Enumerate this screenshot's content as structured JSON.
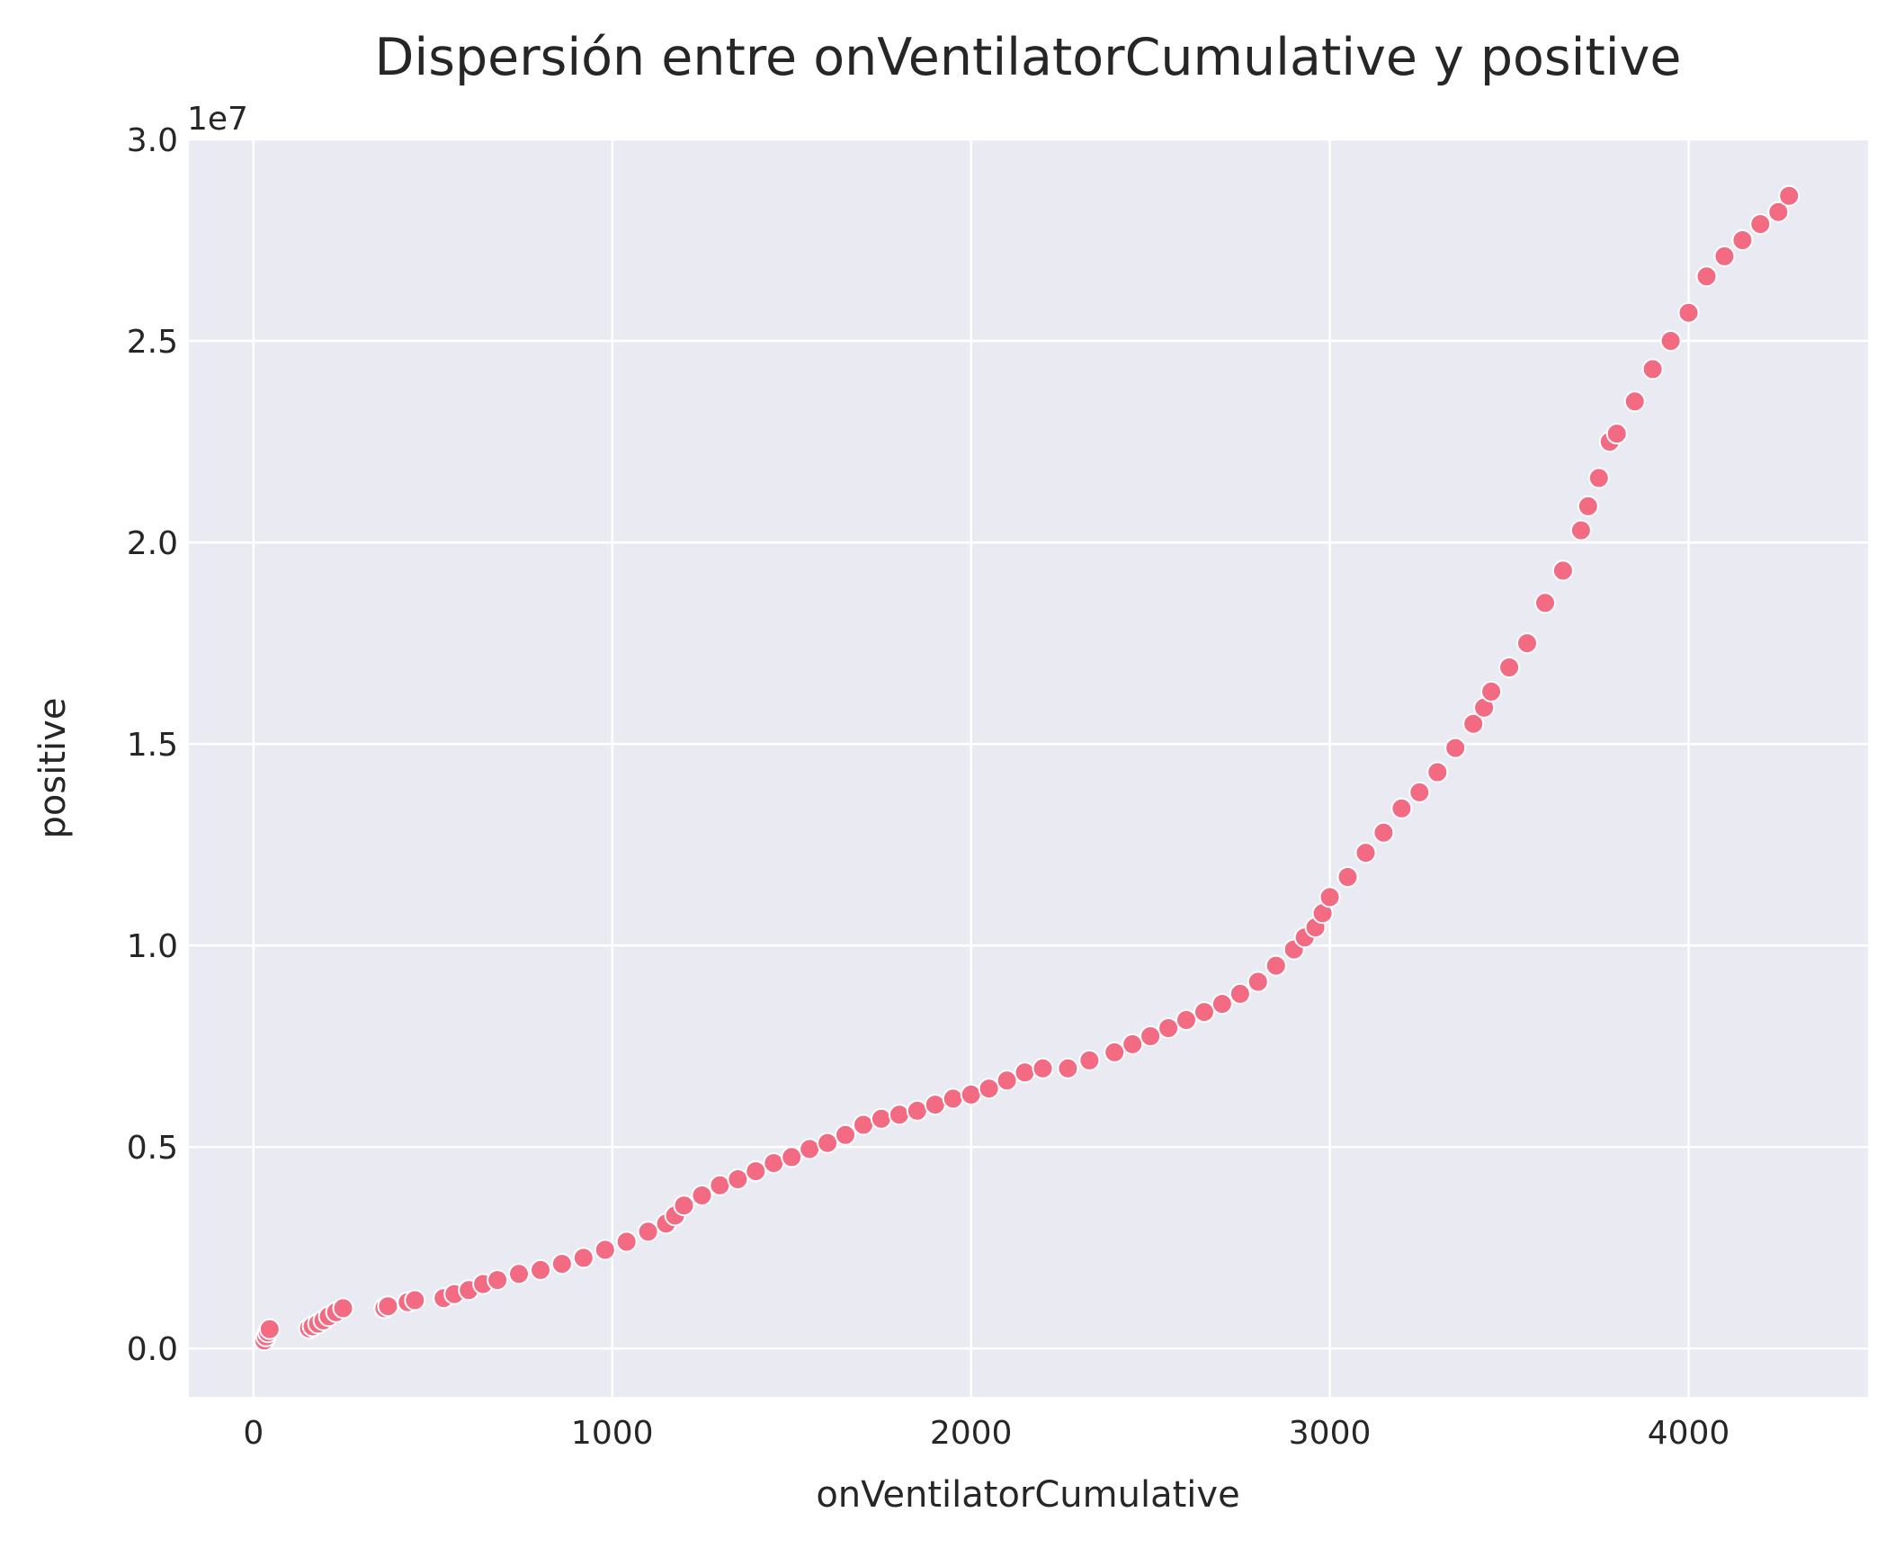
{
  "chart_data": {
    "type": "scatter",
    "title": "Dispersión entre onVentilatorCumulative y positive",
    "xlabel": "onVentilatorCumulative",
    "ylabel": "positive",
    "y_offset_label": "1e7",
    "xlim": [
      -180,
      4500
    ],
    "ylim": [
      -1200000,
      30000000
    ],
    "x_ticks": [
      0,
      1000,
      2000,
      3000,
      4000
    ],
    "x_tick_labels": [
      "0",
      "1000",
      "2000",
      "3000",
      "4000"
    ],
    "y_ticks": [
      0,
      5000000,
      10000000,
      15000000,
      20000000,
      25000000,
      30000000
    ],
    "y_tick_labels": [
      "0.0",
      "0.5",
      "1.0",
      "1.5",
      "2.0",
      "2.5",
      "3.0"
    ],
    "grid": true,
    "background_color": "#eaeaf2",
    "grid_color": "#ffffff",
    "marker_color": "#f26b83",
    "marker_edge_color": "#ffffff",
    "x": [
      30,
      35,
      40,
      45,
      155,
      165,
      180,
      195,
      210,
      230,
      250,
      365,
      375,
      430,
      450,
      530,
      560,
      600,
      640,
      680,
      740,
      800,
      860,
      920,
      980,
      1040,
      1100,
      1150,
      1175,
      1200,
      1250,
      1300,
      1350,
      1400,
      1450,
      1500,
      1550,
      1600,
      1650,
      1700,
      1750,
      1800,
      1850,
      1900,
      1950,
      2000,
      2050,
      2100,
      2150,
      2200,
      2270,
      2330,
      2400,
      2450,
      2500,
      2550,
      2600,
      2650,
      2700,
      2750,
      2800,
      2850,
      2900,
      2930,
      2960,
      2980,
      3000,
      3050,
      3100,
      3150,
      3200,
      3250,
      3300,
      3350,
      3400,
      3430,
      3450,
      3500,
      3550,
      3600,
      3650,
      3700,
      3720,
      3750,
      3780,
      3800,
      3850,
      3900,
      3950,
      4000,
      4050,
      4100,
      4150,
      4200,
      4250,
      4280
    ],
    "y": [
      200000,
      300000,
      400000,
      480000,
      500000,
      550000,
      620000,
      700000,
      800000,
      900000,
      1000000,
      1000000,
      1050000,
      1150000,
      1200000,
      1250000,
      1350000,
      1450000,
      1600000,
      1700000,
      1850000,
      1950000,
      2100000,
      2250000,
      2450000,
      2650000,
      2900000,
      3100000,
      3300000,
      3550000,
      3800000,
      4050000,
      4200000,
      4400000,
      4600000,
      4750000,
      4950000,
      5100000,
      5300000,
      5550000,
      5700000,
      5800000,
      5900000,
      6050000,
      6200000,
      6300000,
      6450000,
      6650000,
      6850000,
      6950000,
      6950000,
      7150000,
      7350000,
      7550000,
      7750000,
      7950000,
      8150000,
      8350000,
      8550000,
      8800000,
      9100000,
      9500000,
      9900000,
      10200000,
      10450000,
      10800000,
      11200000,
      11700000,
      12300000,
      12800000,
      13400000,
      13800000,
      14300000,
      14900000,
      15500000,
      15900000,
      16300000,
      16900000,
      17500000,
      18500000,
      19300000,
      20300000,
      20900000,
      21600000,
      22500000,
      22700000,
      23500000,
      24300000,
      25000000,
      25700000,
      26600000,
      27100000,
      27500000,
      27900000,
      28200000,
      28600000
    ]
  }
}
